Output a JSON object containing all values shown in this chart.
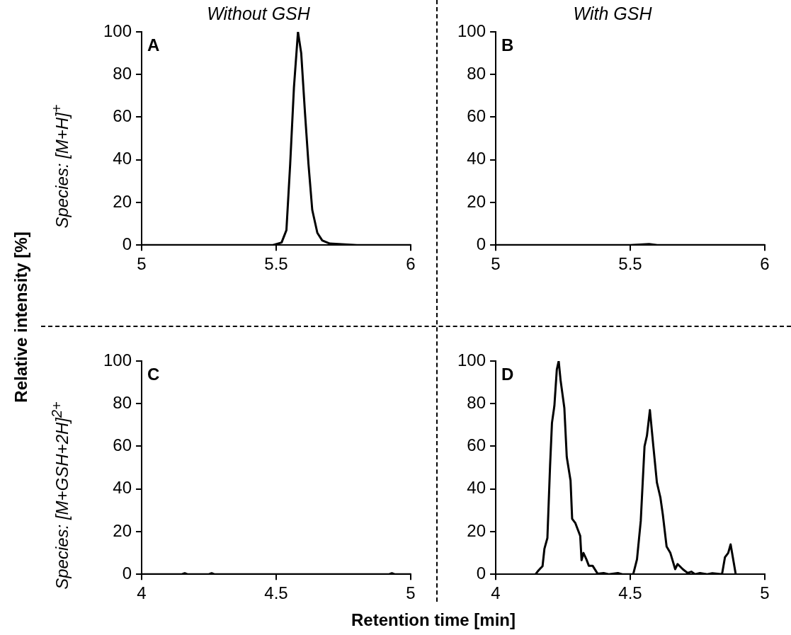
{
  "chart_data": [
    {
      "type": "line",
      "title": "Without GSH",
      "ylabel": "Species: [M+H]$^{+}$",
      "annotations": [
        "A",
        "Relative intensity [%]"
      ],
      "color": "#000000",
      "xlim": [
        5,
        6
      ],
      "xticks": [
        5,
        5.5,
        6
      ],
      "ylim": [
        0,
        100
      ],
      "yticks": [
        0,
        20,
        40,
        60,
        80,
        100
      ],
      "x": [
        5,
        5.2,
        5.4,
        5.488,
        5.52,
        5.538,
        5.552,
        5.566,
        5.581,
        5.593,
        5.607,
        5.62,
        5.634,
        5.653,
        5.671,
        5.699,
        5.8,
        6
      ],
      "values": [
        0,
        0,
        0,
        0,
        1.2,
        7,
        38,
        74,
        100,
        90,
        62,
        38,
        16.5,
        5.7,
        2.2,
        0.7,
        0,
        0
      ]
    },
    {
      "type": "line",
      "title": "With GSH",
      "annotations": [
        "B"
      ],
      "color": "#000000",
      "xlim": [
        5,
        6
      ],
      "xticks": [
        5,
        5.5,
        6
      ],
      "ylim": [
        0,
        100
      ],
      "yticks": [
        0,
        20,
        40,
        60,
        80,
        100
      ],
      "x": [
        5,
        5.2,
        5.4,
        5.5,
        5.57,
        5.6,
        5.8,
        6
      ],
      "values": [
        0,
        0,
        0,
        0,
        0.5,
        0,
        0,
        0
      ]
    },
    {
      "type": "line",
      "ylabel": "Species: [M+GSH+2H]$^{2+}$",
      "xlabel": "Retention time [min]",
      "annotations": [
        "C"
      ],
      "color": "#000000",
      "xlim": [
        4,
        5
      ],
      "xticks": [
        4,
        4.5,
        5
      ],
      "ylim": [
        0,
        100
      ],
      "yticks": [
        0,
        20,
        40,
        60,
        80,
        100
      ],
      "x": [
        4,
        4.15,
        4.16,
        4.17,
        4.25,
        4.26,
        4.27,
        4.5,
        4.92,
        4.93,
        4.94,
        5
      ],
      "values": [
        0,
        0,
        0.5,
        0,
        0,
        0.5,
        0,
        0,
        0,
        0.5,
        0,
        0
      ]
    },
    {
      "type": "line",
      "annotations": [
        "D"
      ],
      "color": "#000000",
      "xlim": [
        4,
        5
      ],
      "xticks": [
        4,
        4.5,
        5
      ],
      "ylim": [
        0,
        100
      ],
      "yticks": [
        0,
        20,
        40,
        60,
        80,
        100
      ],
      "x": [
        4.149,
        4.159,
        4.174,
        4.181,
        4.192,
        4.202,
        4.209,
        4.218,
        4.227,
        4.234,
        4.241,
        4.255,
        4.264,
        4.278,
        4.284,
        4.296,
        4.314,
        4.319,
        4.326,
        4.337,
        4.346,
        4.36,
        4.379,
        4.401,
        4.42,
        4.454,
        4.47,
        4.511,
        4.525,
        4.539,
        4.553,
        4.562,
        4.573,
        4.585,
        4.599,
        4.612,
        4.621,
        4.635,
        4.649,
        4.667,
        4.676,
        4.695,
        4.713,
        4.727,
        4.741,
        4.759,
        4.786,
        4.805,
        4.841,
        4.852,
        4.864,
        4.873,
        4.892
      ],
      "values": [
        0.2,
        1.8,
        3.8,
        12,
        17,
        51,
        71,
        79,
        96,
        100,
        91,
        78,
        55,
        44,
        26,
        24,
        18,
        6.6,
        10,
        7,
        4,
        4,
        0.2,
        0.6,
        0,
        0.6,
        0,
        0,
        7,
        25,
        60,
        65,
        77,
        61,
        43,
        36,
        28,
        13,
        10,
        2.4,
        4.8,
        2.4,
        0.6,
        1.2,
        0,
        0.6,
        0,
        0.5,
        0,
        8,
        10,
        14,
        0
      ]
    }
  ]
}
